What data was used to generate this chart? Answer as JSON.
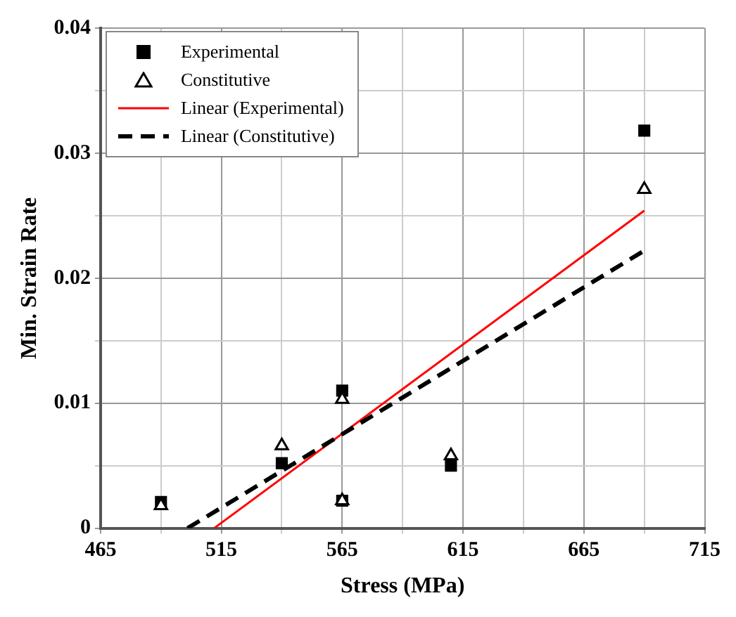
{
  "chart_data": {
    "type": "scatter",
    "xlabel": "Stress (MPa)",
    "ylabel": "Min. Strain Rate",
    "xlim": [
      465,
      715
    ],
    "xticks": [
      465,
      {
        "value": 490,
        "label": null
      },
      515,
      {
        "value": 540,
        "label": null
      },
      565,
      {
        "value": 590,
        "label": null
      },
      615,
      {
        "value": 640,
        "label": null
      },
      665,
      {
        "value": 690,
        "label": null
      },
      715
    ],
    "ylim": [
      0,
      0.04
    ],
    "yticks": [
      0,
      {
        "value": 0.005,
        "label": null
      },
      0.01,
      {
        "value": 0.015,
        "label": null
      },
      0.02,
      {
        "value": 0.025,
        "label": null
      },
      0.03,
      {
        "value": 0.035,
        "label": null
      },
      0.04
    ],
    "grid": true,
    "legend": "top left",
    "series": [
      {
        "name": "Experimental",
        "marker": "square",
        "color": "#000000",
        "x": [
          490,
          540,
          565,
          565,
          610,
          690
        ],
        "values": [
          0.0021,
          0.0052,
          0.011,
          0.0022,
          0.005,
          0.0318
        ]
      },
      {
        "name": "Constitutive",
        "marker": "triangle",
        "color": "#000000",
        "x": [
          490,
          540,
          565,
          565,
          610,
          690
        ],
        "values": [
          0.0018,
          0.0066,
          0.0103,
          0.0022,
          0.0058,
          0.0271
        ]
      },
      {
        "name": "Linear (Experimental)",
        "type": "line",
        "line_style": "solid",
        "marker": "none",
        "color": "#ff0000",
        "x": [
          512,
          690
        ],
        "values": [
          0,
          0.0254
        ]
      },
      {
        "name": "Linear (Constitutive)",
        "type": "line",
        "line_style": "dashed",
        "marker": "none",
        "color": "#000000",
        "x": [
          501,
          690
        ],
        "values": [
          0,
          0.0222
        ]
      }
    ]
  }
}
